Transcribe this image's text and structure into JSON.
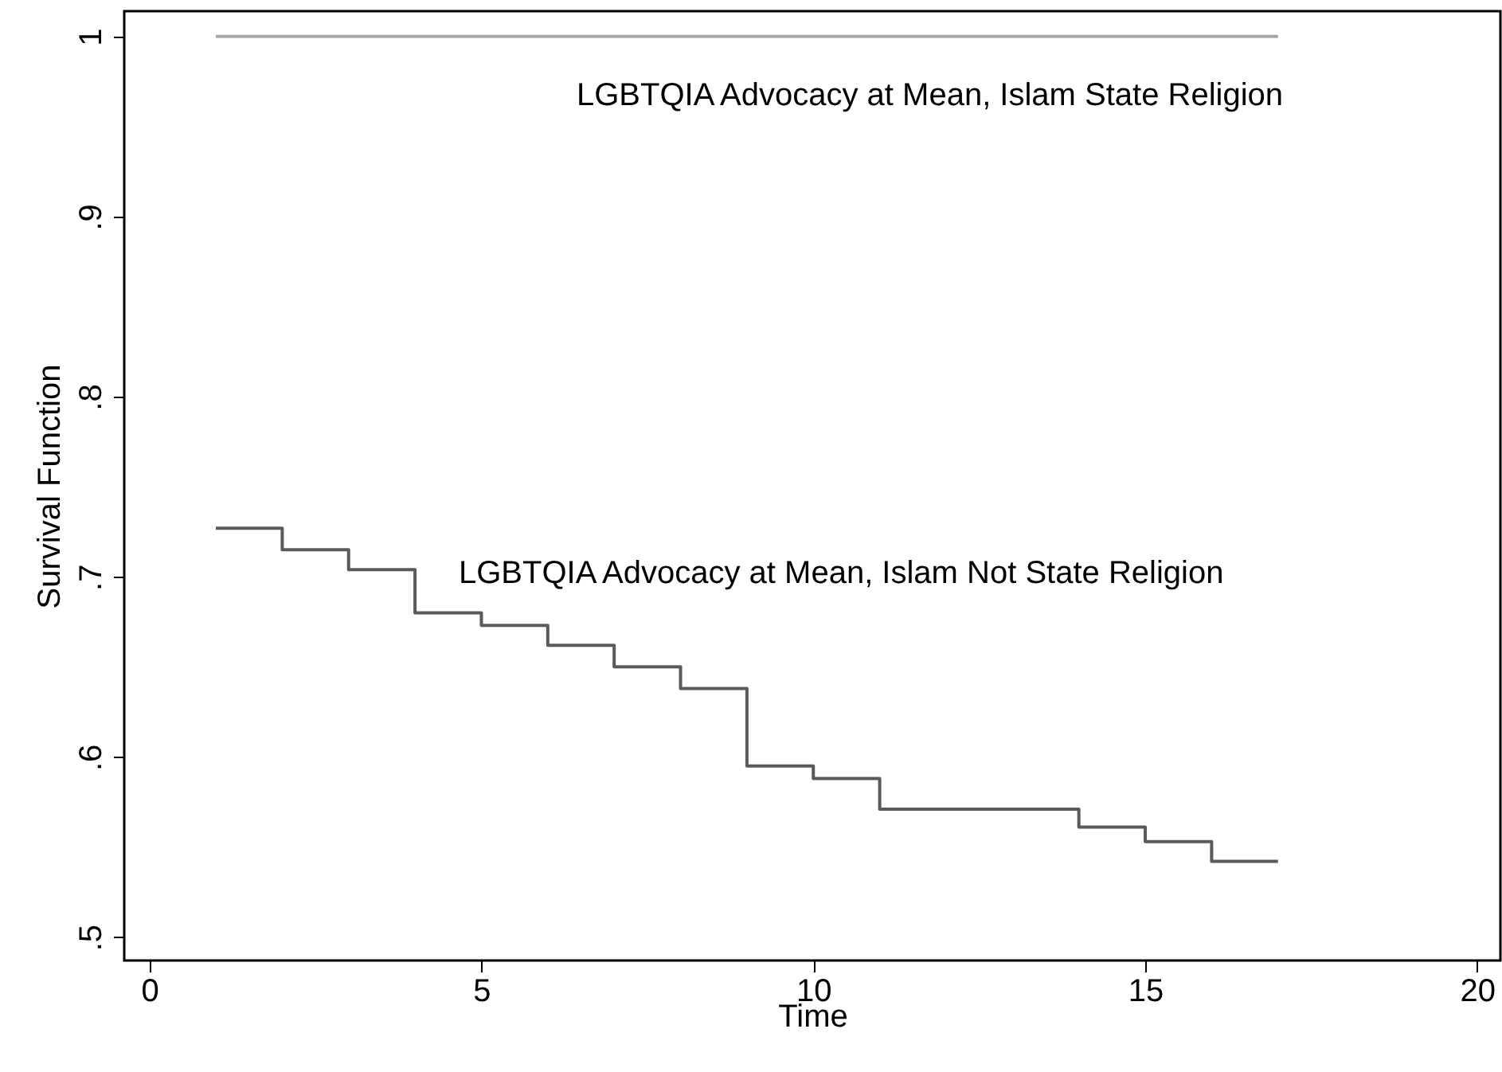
{
  "chart_data": {
    "type": "step",
    "xlabel": "Time",
    "ylabel": "Survival Function",
    "xlim": [
      -0.38,
      20.35
    ],
    "ylim": [
      0.487,
      1.014
    ],
    "xticks": [
      0,
      5,
      10,
      15,
      20
    ],
    "yticks": [
      {
        "value": 0.5,
        "label": ".5"
      },
      {
        "value": 0.6,
        "label": ".6"
      },
      {
        "value": 0.7,
        "label": ".7"
      },
      {
        "value": 0.8,
        "label": ".8"
      },
      {
        "value": 0.9,
        "label": ".9"
      },
      {
        "value": 1,
        "label": "1"
      }
    ],
    "grid": false,
    "marker": "none",
    "line_style": "solid",
    "series": [
      {
        "color": "#a6a6a6",
        "x": [
          1,
          17
        ],
        "values": [
          1,
          1
        ]
      },
      {
        "color": "#5a5a5a",
        "x": [
          1,
          2,
          3,
          4,
          5,
          6,
          7,
          8,
          9,
          10,
          11,
          14,
          15,
          16,
          17
        ],
        "values": [
          0.727,
          0.715,
          0.704,
          0.68,
          0.673,
          0.662,
          0.65,
          0.638,
          0.595,
          0.588,
          0.571,
          0.561,
          0.553,
          0.542,
          0.542
        ]
      }
    ],
    "annotations": [
      "LGBTQIA Advocacy at Mean, Islam State Religion",
      "LGBTQIA Advocacy at Mean, Islam Not State Religion"
    ]
  }
}
